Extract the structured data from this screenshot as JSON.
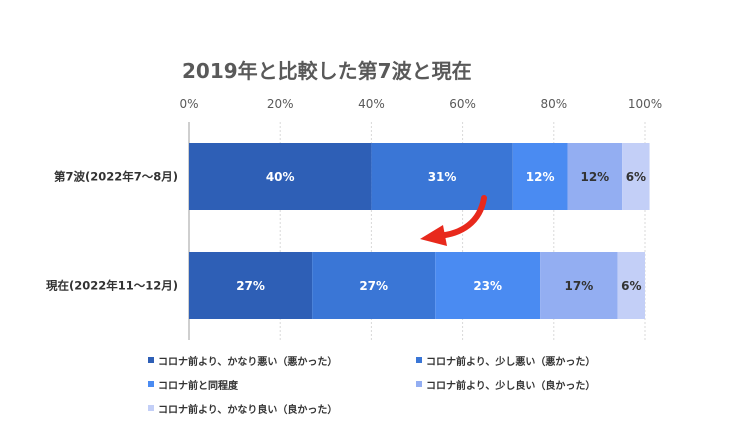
{
  "chart_data": {
    "type": "bar",
    "orientation": "horizontal",
    "stacked": true,
    "title": "2019年と比較した第7波と現在",
    "categories": [
      "第7波(2022年7〜8月)",
      "現在(2022年11〜12月)"
    ],
    "xlim": [
      0,
      100
    ],
    "x_ticks": [
      "0%",
      "20%",
      "40%",
      "60%",
      "80%",
      "100%"
    ],
    "grid": true,
    "legend_position": "bottom",
    "series": [
      {
        "name": "コロナ前より、かなり悪い（悪かった）",
        "color": "#2E5FB6",
        "label_color": "#ffffff",
        "values": [
          40,
          27
        ],
        "labels": [
          "40%",
          "27%"
        ]
      },
      {
        "name": "コロナ前より、少し悪い（悪かった）",
        "color": "#3A76D6",
        "label_color": "#ffffff",
        "values": [
          31,
          27
        ],
        "labels": [
          "31%",
          "27%"
        ]
      },
      {
        "name": "コロナ前と同程度",
        "color": "#4A8BF2",
        "label_color": "#ffffff",
        "values": [
          12,
          23
        ],
        "labels": [
          "12%",
          "23%"
        ]
      },
      {
        "name": "コロナ前より、少し良い（良かった）",
        "color": "#93AEF2",
        "label_color": "#333333",
        "values": [
          12,
          17
        ],
        "labels": [
          "12%",
          "17%"
        ]
      },
      {
        "name": "コロナ前より、かなり良い（良かった）",
        "color": "#C3CFF7",
        "label_color": "#333333",
        "values": [
          6,
          6
        ],
        "labels": [
          "6%",
          "6%"
        ]
      }
    ],
    "annotation": {
      "type": "arrow",
      "color": "#E8291C",
      "from_category": "第7波(2022年7〜8月)",
      "to_category": "現在(2022年11〜12月)"
    }
  }
}
